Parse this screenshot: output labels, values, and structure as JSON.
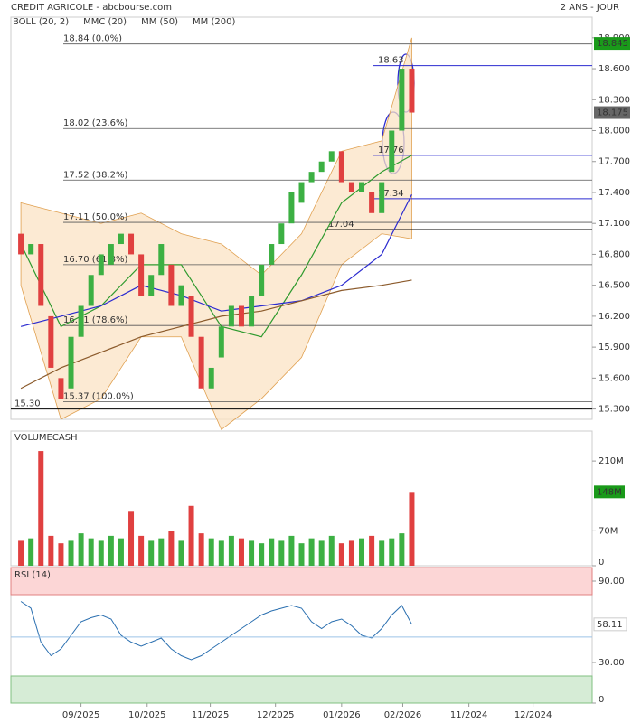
{
  "chart_data": {
    "type": "candlestick",
    "title": "CREDIT AGRICOLE - abcbourse.com",
    "subtitle": "2 ANS - JOUR",
    "legend": [
      {
        "name": "BOLL (20, 2)",
        "color": "#e0a050"
      },
      {
        "name": "MMC (20)",
        "color": "#2e9a2e"
      },
      {
        "name": "MM (50)",
        "color": "#2b2bd0"
      },
      {
        "name": "MM (200)",
        "color": "#8b5a2b"
      }
    ],
    "xlim": [
      -1,
      57
    ],
    "xticks": [
      {
        "value": 6.0,
        "label": "09/2025"
      },
      {
        "value": 12.6,
        "label": "10/2025"
      },
      {
        "value": 18.9,
        "label": "11/2025"
      },
      {
        "value": 25.4,
        "label": "12/2025"
      },
      {
        "value": 32.0,
        "label": "01/2026"
      },
      {
        "value": 38.1,
        "label": "02/2026"
      },
      {
        "value": 44.7,
        "label": "11/2024"
      },
      {
        "value": 51.1,
        "label": "12/2024"
      }
    ],
    "ylim": [
      15.2,
      19.1
    ],
    "yticks": [
      {
        "value": 18.9,
        "label": "18.900"
      },
      {
        "value": 18.6,
        "label": "18.600"
      },
      {
        "value": 18.3,
        "label": "18.300"
      },
      {
        "value": 18.0,
        "label": "18.000"
      },
      {
        "value": 17.7,
        "label": "17.700"
      },
      {
        "value": 17.4,
        "label": "17.400"
      },
      {
        "value": 17.1,
        "label": "17.100"
      },
      {
        "value": 16.8,
        "label": "16.800"
      },
      {
        "value": 16.5,
        "label": "16.500"
      },
      {
        "value": 16.2,
        "label": "16.200"
      },
      {
        "value": 15.9,
        "label": "15.900"
      },
      {
        "value": 15.6,
        "label": "15.600"
      },
      {
        "value": 15.3,
        "label": "15.300"
      }
    ],
    "up_color": "#3cb043",
    "down_color": "#e04040",
    "open": [
      17.0,
      16.8,
      16.9,
      16.2,
      15.6,
      15.5,
      16.0,
      16.3,
      16.6,
      16.7,
      16.9,
      17.0,
      16.8,
      16.4,
      16.6,
      16.7,
      16.3,
      16.4,
      16.0,
      15.5,
      15.8,
      16.1,
      16.3,
      16.1,
      16.4,
      16.7,
      16.9,
      17.1,
      17.3,
      17.5,
      17.6,
      17.7,
      17.8,
      17.5,
      17.4,
      17.4,
      17.2,
      17.6,
      18.0,
      18.6
    ],
    "close": [
      16.8,
      16.9,
      16.3,
      15.7,
      15.4,
      16.0,
      16.3,
      16.6,
      16.8,
      16.9,
      17.0,
      16.8,
      16.4,
      16.6,
      16.9,
      16.3,
      16.5,
      16.0,
      15.5,
      15.7,
      16.1,
      16.3,
      16.1,
      16.4,
      16.7,
      16.9,
      17.1,
      17.4,
      17.5,
      17.6,
      17.7,
      17.8,
      17.5,
      17.4,
      17.5,
      17.2,
      17.5,
      18.0,
      18.6,
      18.175
    ],
    "overlay_x": [
      0,
      4,
      8,
      12,
      16,
      20,
      24,
      28,
      32,
      36,
      39
    ],
    "bands": {
      "upper": [
        17.3,
        17.2,
        17.1,
        17.2,
        17.0,
        16.9,
        16.6,
        17.0,
        17.8,
        17.9,
        18.9
      ],
      "lower": [
        16.5,
        15.2,
        15.4,
        16.0,
        16.0,
        15.1,
        15.4,
        15.8,
        16.7,
        17.0,
        16.95
      ]
    },
    "series": [
      {
        "name": "MMC (20)",
        "color": "#2e9a2e",
        "values": [
          16.9,
          16.1,
          16.3,
          16.7,
          16.7,
          16.1,
          16.0,
          16.6,
          17.3,
          17.6,
          17.76
        ]
      },
      {
        "name": "MM (50)",
        "color": "#2b2bd0",
        "values": [
          16.1,
          16.2,
          16.3,
          16.5,
          16.4,
          16.25,
          16.3,
          16.35,
          16.5,
          16.8,
          17.38
        ]
      },
      {
        "name": "MM (200)",
        "color": "#8b5a2b",
        "values": [
          15.5,
          15.7,
          15.85,
          16.0,
          16.1,
          16.2,
          16.25,
          16.35,
          16.45,
          16.5,
          16.55
        ]
      }
    ],
    "fib_levels": [
      {
        "value": 18.84,
        "label": "18.84 (0.0%)"
      },
      {
        "value": 18.02,
        "label": "18.02 (23.6%)"
      },
      {
        "value": 17.52,
        "label": "17.52 (38.2%)"
      },
      {
        "value": 17.11,
        "label": "17.11 (50.0%)"
      },
      {
        "value": 16.7,
        "label": "16.70 (61.8%)"
      },
      {
        "value": 16.11,
        "label": "16.11 (78.6%)"
      },
      {
        "value": 15.37,
        "label": "15.37 (100.0%)"
      }
    ],
    "support": {
      "value": 15.3,
      "label": "15.30"
    },
    "black_level": 17.04,
    "blue_levels": [
      18.63,
      17.76,
      17.34
    ],
    "last_high": 18.845,
    "last_price": 18.175,
    "volume": {
      "title": "VOLUMECASH",
      "ylim": [
        0,
        270
      ],
      "yticks": [
        {
          "value": 210,
          "label": "210M"
        },
        {
          "value": 70,
          "label": "70M"
        },
        0
      ],
      "values": [
        50,
        55,
        230,
        60,
        45,
        50,
        65,
        55,
        50,
        60,
        55,
        110,
        60,
        50,
        55,
        70,
        50,
        120,
        65,
        55,
        50,
        60,
        55,
        50,
        45,
        55,
        50,
        60,
        45,
        55,
        50,
        60,
        45,
        50,
        55,
        60,
        50,
        55,
        65,
        148
      ],
      "value_labels": {
        "39": "148M"
      }
    },
    "rsi": {
      "title": "RSI (14)",
      "ylim": [
        0,
        100
      ],
      "yticks": [
        {
          "value": 90,
          "label": "90.00"
        },
        {
          "value": 30,
          "label": "30.00"
        },
        0
      ],
      "zones": [
        80,
        20
      ],
      "color": "#2a6fb0",
      "values": [
        75,
        70,
        45,
        35,
        40,
        50,
        60,
        63,
        65,
        62,
        50,
        45,
        42,
        45,
        48,
        40,
        35,
        32,
        35,
        40,
        45,
        50,
        55,
        60,
        65,
        68,
        70,
        72,
        70,
        60,
        55,
        60,
        62,
        57,
        50,
        48,
        55,
        65,
        72,
        58.11
      ]
    }
  }
}
